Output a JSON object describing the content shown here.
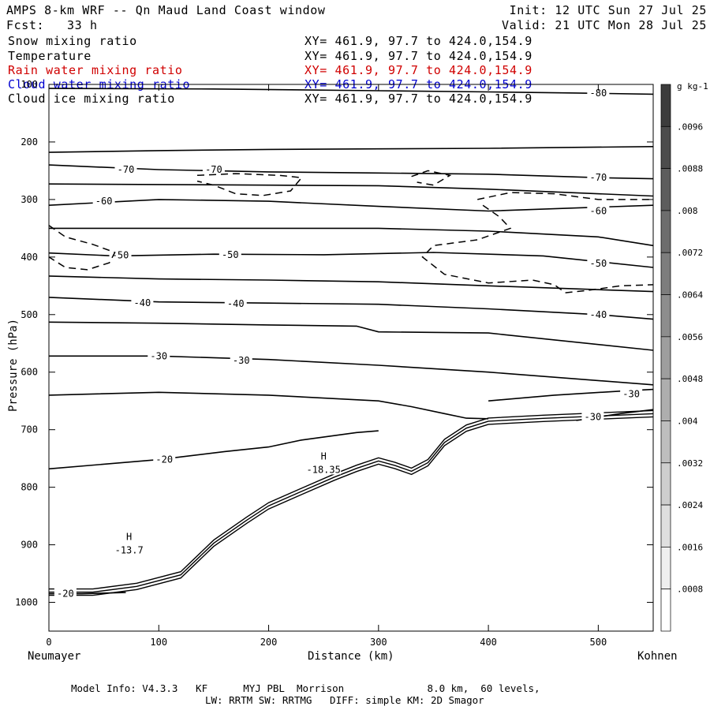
{
  "header": {
    "title": "AMPS 8-km WRF -- Qn Maud Land Coast window",
    "init": "Init: 12 UTC Sun 27 Jul 25",
    "fcst": "Fcst:   33 h",
    "valid": "Valid: 21 UTC Mon 28 Jul 25"
  },
  "fields": [
    {
      "name": "Snow mixing ratio",
      "xy": "XY= 461.9, 97.7 to 424.0,154.9",
      "color": "#000000"
    },
    {
      "name": "Temperature",
      "xy": "XY= 461.9, 97.7 to 424.0,154.9",
      "color": "#000000"
    },
    {
      "name": "Rain water mixing ratio",
      "xy": "XY= 461.9, 97.7 to 424.0,154.9",
      "color": "#d00000"
    },
    {
      "name": "Cloud water mixing ratio",
      "xy": "XY= 461.9, 97.7 to 424.0,154.9",
      "color": "#0000d0"
    },
    {
      "name": "Cloud ice mixing ratio",
      "xy": "XY= 461.9, 97.7 to 424.0,154.9",
      "color": "#000000"
    }
  ],
  "footer": {
    "line1": "Model Info: V4.3.3   KF      MYJ PBL  Morrison              8.0 km,  60 levels,",
    "line2": "LW: RRTM SW: RRTMG   DIFF: simple KM: 2D Smagor"
  },
  "chart_data": {
    "type": "contour",
    "xlabel": "Distance (km)",
    "ylabel": "Pressure (hPa)",
    "xlim": [
      0,
      550
    ],
    "ylim": [
      1050,
      100
    ],
    "left_label": "Neumayer",
    "right_label": "Kohnen",
    "x_ticks": [
      0,
      100,
      200,
      300,
      400,
      500
    ],
    "y_ticks": [
      100,
      200,
      300,
      400,
      500,
      600,
      700,
      800,
      900,
      1000
    ],
    "colorbar": {
      "unit": "g kg-1",
      "labels": [
        ".0096",
        ".0088",
        ".008",
        ".0072",
        ".0064",
        ".0056",
        ".0048",
        ".004",
        ".0032",
        ".0024",
        ".0016",
        ".0008"
      ]
    },
    "temperature_contours": [
      {
        "level": -80,
        "points": [
          [
            0,
            107
          ],
          [
            150,
            108
          ],
          [
            300,
            111
          ],
          [
            400,
            113
          ],
          [
            480,
            115
          ],
          [
            550,
            117
          ]
        ],
        "labels": [
          [
            500,
            115
          ]
        ]
      },
      {
        "level": -80,
        "points": [
          [
            0,
            218
          ],
          [
            100,
            215
          ],
          [
            200,
            213
          ],
          [
            300,
            212
          ],
          [
            400,
            211
          ],
          [
            550,
            208
          ]
        ],
        "labels": []
      },
      {
        "level": -70,
        "points": [
          [
            0,
            240
          ],
          [
            100,
            248
          ],
          [
            200,
            252
          ],
          [
            300,
            254
          ],
          [
            400,
            256
          ],
          [
            500,
            262
          ],
          [
            550,
            264
          ]
        ],
        "labels": [
          [
            70,
            248
          ],
          [
            150,
            248
          ],
          [
            500,
            262
          ]
        ]
      },
      {
        "level": -70,
        "points": [
          [
            0,
            273
          ],
          [
            100,
            274
          ],
          [
            200,
            275
          ],
          [
            300,
            276
          ],
          [
            400,
            282
          ],
          [
            550,
            294
          ]
        ],
        "labels": []
      },
      {
        "level": -60,
        "points": [
          [
            0,
            310
          ],
          [
            100,
            300
          ],
          [
            200,
            303
          ],
          [
            300,
            312
          ],
          [
            400,
            320
          ],
          [
            550,
            310
          ]
        ],
        "labels": [
          [
            50,
            303
          ],
          [
            500,
            320
          ]
        ]
      },
      {
        "level": -60,
        "points": [
          [
            0,
            350
          ],
          [
            100,
            350
          ],
          [
            200,
            350
          ],
          [
            300,
            350
          ],
          [
            400,
            355
          ],
          [
            500,
            365
          ],
          [
            550,
            380
          ]
        ],
        "labels": []
      },
      {
        "level": -50,
        "points": [
          [
            0,
            393
          ],
          [
            60,
            398
          ],
          [
            150,
            395
          ],
          [
            250,
            396
          ],
          [
            350,
            392
          ],
          [
            450,
            398
          ],
          [
            550,
            418
          ]
        ],
        "labels": [
          [
            65,
            397
          ],
          [
            165,
            396
          ],
          [
            500,
            411
          ]
        ]
      },
      {
        "level": -50,
        "points": [
          [
            0,
            433
          ],
          [
            100,
            438
          ],
          [
            200,
            440
          ],
          [
            300,
            443
          ],
          [
            400,
            450
          ],
          [
            550,
            460
          ]
        ],
        "labels": []
      },
      {
        "level": -40,
        "points": [
          [
            0,
            470
          ],
          [
            100,
            478
          ],
          [
            200,
            480
          ],
          [
            300,
            482
          ],
          [
            400,
            490
          ],
          [
            500,
            500
          ],
          [
            550,
            508
          ]
        ],
        "labels": [
          [
            85,
            480
          ],
          [
            170,
            481
          ],
          [
            500,
            500
          ]
        ]
      },
      {
        "level": -40,
        "points": [
          [
            0,
            513
          ],
          [
            100,
            515
          ],
          [
            200,
            518
          ],
          [
            280,
            520
          ],
          [
            300,
            530
          ],
          [
            400,
            532
          ],
          [
            550,
            562
          ]
        ],
        "labels": []
      },
      {
        "level": -30,
        "points": [
          [
            0,
            572
          ],
          [
            100,
            572
          ],
          [
            200,
            578
          ],
          [
            300,
            588
          ],
          [
            400,
            600
          ],
          [
            550,
            622
          ]
        ],
        "labels": [
          [
            100,
            572
          ],
          [
            175,
            580
          ]
        ]
      },
      {
        "level": -30,
        "points": [
          [
            0,
            640
          ],
          [
            100,
            635
          ],
          [
            200,
            640
          ],
          [
            300,
            650
          ],
          [
            330,
            660
          ],
          [
            360,
            672
          ],
          [
            380,
            680
          ],
          [
            400,
            681
          ]
        ],
        "labels": []
      },
      {
        "level": -30,
        "points": [
          [
            480,
            684
          ],
          [
            520,
            672
          ],
          [
            550,
            665
          ]
        ],
        "labels": [
          [
            495,
            678
          ]
        ]
      },
      {
        "level": -30,
        "points": [
          [
            400,
            650
          ],
          [
            460,
            640
          ],
          [
            520,
            633
          ],
          [
            550,
            630
          ]
        ],
        "labels": [
          [
            530,
            638
          ]
        ]
      },
      {
        "level": -20,
        "points": [
          [
            0,
            768
          ],
          [
            100,
            752
          ],
          [
            160,
            738
          ],
          [
            200,
            730
          ],
          [
            230,
            718
          ],
          [
            280,
            705
          ],
          [
            300,
            702
          ]
        ],
        "labels": [
          [
            105,
            752
          ]
        ]
      },
      {
        "level": -20,
        "points": [
          [
            0,
            985
          ],
          [
            30,
            985
          ],
          [
            70,
            983
          ]
        ],
        "labels": [
          [
            15,
            985
          ]
        ]
      }
    ],
    "highs": [
      {
        "label": "H",
        "value": "-18.35",
        "x": 250,
        "y": 760
      },
      {
        "label": "H",
        "value": "-13.7",
        "x": 73,
        "y": 900
      }
    ],
    "terrain": [
      [
        0,
        985
      ],
      [
        40,
        985
      ],
      [
        80,
        975
      ],
      [
        120,
        955
      ],
      [
        150,
        900
      ],
      [
        180,
        860
      ],
      [
        200,
        835
      ],
      [
        230,
        810
      ],
      [
        260,
        785
      ],
      [
        280,
        770
      ],
      [
        300,
        757
      ],
      [
        315,
        765
      ],
      [
        330,
        775
      ],
      [
        345,
        760
      ],
      [
        360,
        725
      ],
      [
        380,
        700
      ],
      [
        400,
        688
      ],
      [
        450,
        683
      ],
      [
        550,
        675
      ]
    ]
  }
}
